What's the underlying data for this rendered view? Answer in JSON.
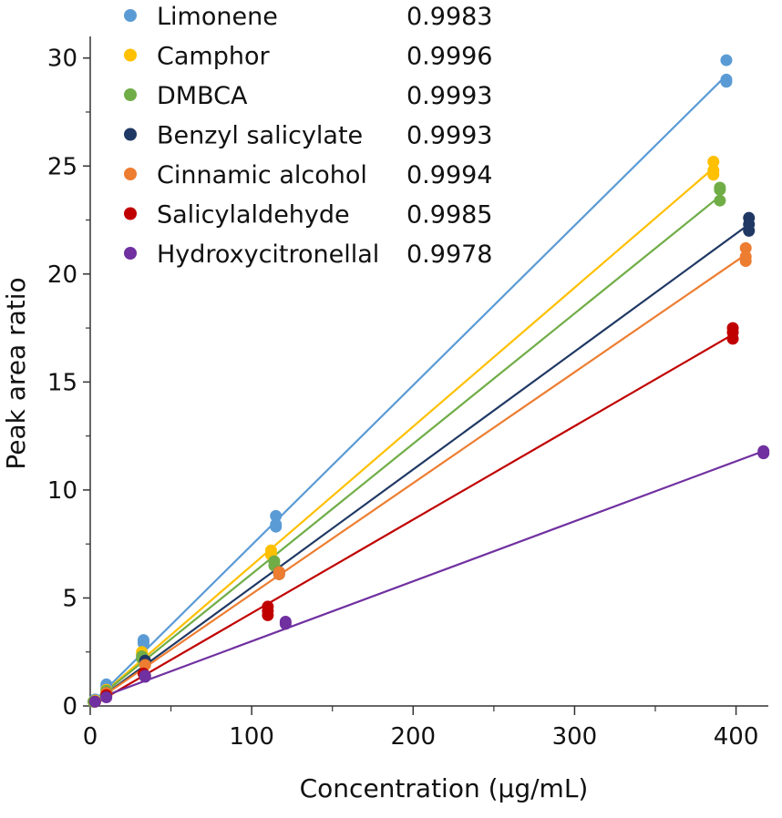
{
  "chart_data": {
    "type": "scatter",
    "xlabel": "Concentration (µg/mL)",
    "ylabel": "Peak area ratio",
    "xlim": [
      0,
      420
    ],
    "ylim": [
      0,
      31
    ],
    "xticks": [
      0,
      100,
      200,
      300,
      400
    ],
    "xtick_labels": [
      "0",
      "100",
      "200",
      "300",
      "400"
    ],
    "yticks": [
      0,
      5,
      10,
      15,
      20,
      25,
      30
    ],
    "ytick_labels": [
      "0",
      "5",
      "10",
      "15",
      "20",
      "25",
      "30"
    ],
    "grid": false,
    "legend_position": "top-left",
    "series": [
      {
        "name": "Limonene",
        "r2": "0.9983",
        "color": "#5b9bd5",
        "points": [
          [
            2,
            0.2
          ],
          [
            3,
            0.3
          ],
          [
            3,
            0.25
          ],
          [
            10,
            0.9
          ],
          [
            10,
            1.0
          ],
          [
            10,
            0.8
          ],
          [
            33,
            3.0
          ],
          [
            33,
            3.05
          ],
          [
            33,
            2.9
          ],
          [
            115,
            8.8
          ],
          [
            115,
            8.4
          ],
          [
            115,
            8.3
          ],
          [
            394,
            29.9
          ],
          [
            394,
            28.9
          ],
          [
            394,
            29.0
          ]
        ],
        "fit": [
          [
            2,
            0.2
          ],
          [
            394,
            29.2
          ]
        ]
      },
      {
        "name": "Camphor",
        "r2": "0.9996",
        "color": "#ffc000",
        "points": [
          [
            2,
            0.2
          ],
          [
            3,
            0.25
          ],
          [
            10,
            0.7
          ],
          [
            10,
            0.75
          ],
          [
            32,
            2.5
          ],
          [
            32,
            2.4
          ],
          [
            112,
            7.2
          ],
          [
            112,
            7.0
          ],
          [
            386,
            25.2
          ],
          [
            386,
            24.8
          ],
          [
            386,
            24.6
          ]
        ],
        "fit": [
          [
            2,
            0.2
          ],
          [
            386,
            24.9
          ]
        ]
      },
      {
        "name": "DMBCA",
        "r2": "0.9993",
        "color": "#70ad47",
        "points": [
          [
            2,
            0.2
          ],
          [
            10,
            0.7
          ],
          [
            32,
            2.2
          ],
          [
            32,
            2.3
          ],
          [
            114,
            6.7
          ],
          [
            114,
            6.5
          ],
          [
            390,
            24.0
          ],
          [
            390,
            23.9
          ],
          [
            390,
            23.4
          ]
        ],
        "fit": [
          [
            2,
            0.2
          ],
          [
            390,
            23.6
          ]
        ]
      },
      {
        "name": "Benzyl salicylate",
        "r2": "0.9993",
        "color": "#203864",
        "points": [
          [
            3,
            0.2
          ],
          [
            10,
            0.6
          ],
          [
            34,
            2.1
          ],
          [
            117,
            6.2
          ],
          [
            117,
            6.1
          ],
          [
            408,
            22.6
          ],
          [
            408,
            22.3
          ],
          [
            408,
            22.0
          ]
        ],
        "fit": [
          [
            3,
            0.2
          ],
          [
            408,
            22.3
          ]
        ]
      },
      {
        "name": "Cinnamic alcohol",
        "r2": "0.9994",
        "color": "#ed7d31",
        "points": [
          [
            3,
            0.2
          ],
          [
            10,
            0.6
          ],
          [
            34,
            1.9
          ],
          [
            117,
            6.2
          ],
          [
            117,
            6.1
          ],
          [
            406,
            21.2
          ],
          [
            406,
            20.8
          ],
          [
            406,
            20.6
          ]
        ],
        "fit": [
          [
            3,
            0.2
          ],
          [
            406,
            20.9
          ]
        ]
      },
      {
        "name": "Salicylaldehyde",
        "r2": "0.9985",
        "color": "#c00000",
        "points": [
          [
            3,
            0.2
          ],
          [
            10,
            0.5
          ],
          [
            33,
            1.5
          ],
          [
            110,
            4.6
          ],
          [
            110,
            4.4
          ],
          [
            110,
            4.2
          ],
          [
            398,
            17.5
          ],
          [
            398,
            17.3
          ],
          [
            398,
            17.0
          ]
        ],
        "fit": [
          [
            3,
            0.1
          ],
          [
            398,
            17.2
          ]
        ]
      },
      {
        "name": "Hydroxycitronellal",
        "r2": "0.9978",
        "color": "#7030a0",
        "points": [
          [
            3,
            0.2
          ],
          [
            10,
            0.4
          ],
          [
            34,
            1.4
          ],
          [
            34,
            1.35
          ],
          [
            121,
            3.9
          ],
          [
            121,
            3.8
          ],
          [
            417,
            11.8
          ],
          [
            417,
            11.7
          ]
        ],
        "fit": [
          [
            3,
            0.3
          ],
          [
            417,
            11.8
          ]
        ]
      }
    ]
  }
}
